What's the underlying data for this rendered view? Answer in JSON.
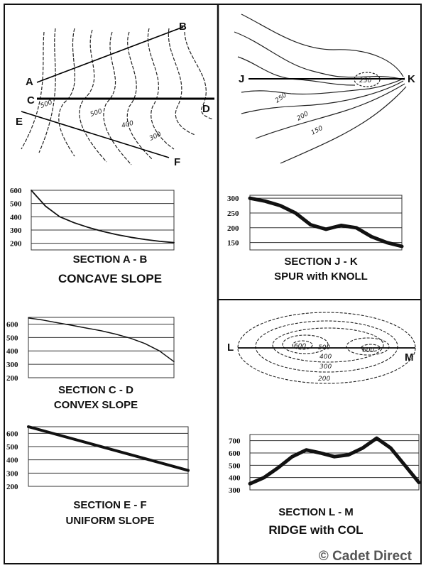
{
  "copyright": "© Cadet Direct",
  "colors": {
    "ink": "#111111",
    "grid": "#333333",
    "watermark": "#555555"
  },
  "ab": {
    "points": {
      "a": "A",
      "b": "B",
      "c": "C",
      "d": "D",
      "e": "E",
      "f": "F"
    },
    "contour_labels": [
      "500",
      "500",
      "400",
      "300"
    ],
    "section_title": "SECTION  A - B",
    "slope_title": "CONCAVE SLOPE",
    "ticks": [
      "600",
      "500",
      "400",
      "300",
      "200"
    ]
  },
  "cd": {
    "section_title": "SECTION C - D",
    "slope_title": "CONVEX SLOPE",
    "ticks": [
      "600",
      "500",
      "400",
      "300",
      "200"
    ]
  },
  "ef": {
    "section_title": "SECTION  E - F",
    "slope_title": "UNIFORM SLOPE",
    "ticks": [
      "600",
      "500",
      "400",
      "300",
      "200"
    ]
  },
  "jk": {
    "points": {
      "j": "J",
      "k": "K"
    },
    "contour_labels": [
      "250",
      "200",
      "150",
      "250"
    ],
    "section_title": "SECTION  J - K",
    "slope_title": "SPUR with KNOLL",
    "ticks": [
      "300",
      "250",
      "200",
      "150"
    ]
  },
  "lm": {
    "points": {
      "l": "L",
      "m": "M"
    },
    "contour_labels": [
      "600",
      "500",
      "600",
      "400",
      "300",
      "200"
    ],
    "section_title": "SECTION  L - M",
    "slope_title": "RIDGE with COL",
    "ticks": [
      "700",
      "600",
      "500",
      "400",
      "300"
    ]
  },
  "chart_data": [
    {
      "type": "line",
      "title": "SECTION  A - B",
      "subtitle": "CONCAVE SLOPE",
      "x": [
        0,
        1,
        2,
        3,
        4,
        5,
        6,
        7,
        8,
        9,
        10
      ],
      "y": [
        600,
        480,
        400,
        355,
        320,
        290,
        265,
        245,
        228,
        215,
        205
      ],
      "ylim": [
        150,
        600
      ]
    },
    {
      "type": "line",
      "title": "SECTION C - D",
      "subtitle": "CONVEX SLOPE",
      "x": [
        0,
        1,
        2,
        3,
        4,
        5,
        6,
        7,
        8,
        9,
        10
      ],
      "y": [
        645,
        630,
        610,
        590,
        570,
        550,
        525,
        495,
        455,
        400,
        320
      ],
      "ylim": [
        200,
        650
      ]
    },
    {
      "type": "line",
      "title": "SECTION  E - F",
      "subtitle": "UNIFORM SLOPE",
      "x": [
        0,
        10
      ],
      "y": [
        650,
        320
      ],
      "ylim": [
        200,
        650
      ]
    },
    {
      "type": "line",
      "title": "SECTION  J - K",
      "subtitle": "SPUR with KNOLL",
      "x": [
        0,
        1,
        2,
        3,
        4,
        5,
        6,
        7,
        8,
        9,
        10
      ],
      "y": [
        300,
        290,
        275,
        250,
        210,
        195,
        208,
        200,
        170,
        150,
        137
      ],
      "ylim": [
        125,
        310
      ]
    },
    {
      "type": "line",
      "title": "SECTION  L - M",
      "subtitle": "RIDGE with COL",
      "x": [
        0,
        1,
        2,
        3,
        4,
        5,
        6,
        7,
        8,
        9,
        10,
        11,
        12
      ],
      "y": [
        350,
        400,
        480,
        570,
        625,
        600,
        570,
        585,
        640,
        720,
        640,
        500,
        360
      ],
      "ylim": [
        300,
        750
      ]
    }
  ]
}
